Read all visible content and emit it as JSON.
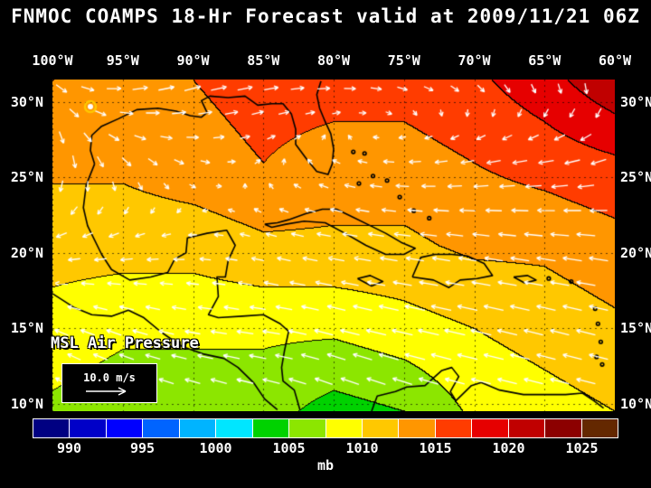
{
  "title": "FNMOC COAMPS 18-Hr Forecast valid at 2009/11/21 06Z",
  "map": {
    "lon_labels": [
      "100°W",
      "95°W",
      "90°W",
      "85°W",
      "80°W",
      "75°W",
      "70°W",
      "65°W",
      "60°W"
    ],
    "lat_labels": [
      "30°N",
      "25°N",
      "20°N",
      "15°N",
      "10°N"
    ],
    "lon_values": [
      100,
      95,
      90,
      85,
      80,
      75,
      70,
      65,
      60
    ],
    "lat_values": [
      30,
      25,
      20,
      15,
      10
    ],
    "extent": {
      "west": 100,
      "east": 60,
      "north": 31.5,
      "south": 9.5
    },
    "annotation": "MSL Air Pressure",
    "wind_legend": {
      "label": "10.0 m/s"
    }
  },
  "colorbar": {
    "unit": "mb",
    "tick_labels": [
      "990",
      "995",
      "1000",
      "1005",
      "1010",
      "1015",
      "1020",
      "1025"
    ],
    "min": 987.5,
    "step": 2.5,
    "colors": [
      "#000082",
      "#0000c8",
      "#0000ff",
      "#0064ff",
      "#00b4ff",
      "#00e6ff",
      "#00d200",
      "#8ce600",
      "#ffff00",
      "#ffc800",
      "#ff9600",
      "#ff3c00",
      "#e60000",
      "#c00000",
      "#8c0000",
      "#642800"
    ]
  },
  "chart_data": {
    "type": "heatmap",
    "field": "Mean sea level air pressure",
    "unit": "mb",
    "title": "FNMOC COAMPS 18-Hr Forecast valid at 2009/11/21 06Z",
    "lons_deg_west": [
      100,
      95,
      90,
      85,
      80,
      75,
      70,
      65,
      60
    ],
    "lats_deg_north": [
      31.5,
      26,
      20.5,
      15,
      9.5
    ],
    "pressure": [
      [
        1015,
        1013,
        1015,
        1016,
        1016,
        1016,
        1017,
        1019,
        1022
      ],
      [
        1013,
        1013,
        1014,
        1015,
        1014,
        1014,
        1015,
        1016,
        1017
      ],
      [
        1011,
        1011,
        1011,
        1012,
        1012,
        1012,
        1013,
        1013,
        1014
      ],
      [
        1009,
        1008,
        1008,
        1008,
        1008,
        1009,
        1010,
        1011,
        1012
      ],
      [
        1007,
        1006,
        1006,
        1006,
        1004,
        1005,
        1008,
        1009,
        1010
      ]
    ],
    "wind_u": [
      [
        4,
        6,
        7,
        6,
        5,
        4,
        3,
        2,
        1
      ],
      [
        0,
        3,
        3,
        1,
        -2,
        -4,
        -5,
        -6,
        -6
      ],
      [
        -4,
        -4,
        -3,
        -4,
        -6,
        -7,
        -7,
        -8,
        -8
      ],
      [
        -5,
        -6,
        -6,
        -7,
        -8,
        -9,
        -9,
        -8,
        -8
      ],
      [
        -4,
        -5,
        -6,
        -7,
        -7,
        -8,
        -8,
        -8,
        -8
      ]
    ],
    "wind_v": [
      [
        -3,
        1,
        2,
        1,
        0,
        -1,
        -2,
        -3,
        -4
      ],
      [
        -5,
        -3,
        -1,
        1,
        1,
        0,
        -1,
        -1,
        -2
      ],
      [
        -1,
        -1,
        0,
        1,
        1,
        1,
        1,
        1,
        1
      ],
      [
        2,
        2,
        1,
        1,
        2,
        2,
        2,
        2,
        2
      ],
      [
        3,
        2,
        2,
        2,
        3,
        3,
        2,
        2,
        2
      ]
    ],
    "low_marker": {
      "lon": 97.3,
      "lat": 29.7,
      "ring_color": "#ffc800"
    },
    "coastlines": [
      [
        [
          97.0,
          25.9
        ],
        [
          97.3,
          26.8
        ],
        [
          97.2,
          27.8
        ],
        [
          96.5,
          28.4
        ],
        [
          95.3,
          28.9
        ],
        [
          94.0,
          29.5
        ],
        [
          92.5,
          29.6
        ],
        [
          91.2,
          29.4
        ],
        [
          90.2,
          29.1
        ],
        [
          89.4,
          29.0
        ],
        [
          89.0,
          29.3
        ],
        [
          89.4,
          30.1
        ],
        [
          88.8,
          30.4
        ],
        [
          87.5,
          30.3
        ],
        [
          86.3,
          30.4
        ],
        [
          85.4,
          29.8
        ],
        [
          84.4,
          29.9
        ],
        [
          83.6,
          29.9
        ],
        [
          83.0,
          29.2
        ],
        [
          82.7,
          28.2
        ],
        [
          82.7,
          27.2
        ],
        [
          81.9,
          26.2
        ],
        [
          81.2,
          25.4
        ],
        [
          80.4,
          25.2
        ],
        [
          80.1,
          25.9
        ],
        [
          80.0,
          26.9
        ],
        [
          80.2,
          27.9
        ],
        [
          80.6,
          28.7
        ],
        [
          81.0,
          29.6
        ],
        [
          81.2,
          30.5
        ],
        [
          80.9,
          31.4
        ]
      ],
      [
        [
          97.0,
          25.9
        ],
        [
          97.6,
          24.5
        ],
        [
          97.8,
          23.0
        ],
        [
          97.5,
          21.8
        ],
        [
          96.5,
          19.9
        ],
        [
          95.8,
          18.9
        ],
        [
          94.5,
          18.2
        ],
        [
          93.0,
          18.4
        ],
        [
          91.8,
          18.7
        ],
        [
          91.3,
          19.6
        ],
        [
          90.5,
          20.0
        ],
        [
          90.4,
          21.0
        ],
        [
          89.0,
          21.3
        ],
        [
          87.6,
          21.5
        ],
        [
          87.0,
          20.5
        ],
        [
          87.5,
          19.5
        ],
        [
          87.7,
          18.4
        ],
        [
          88.3,
          18.4
        ],
        [
          88.2,
          17.1
        ],
        [
          88.9,
          15.9
        ],
        [
          88.2,
          15.7
        ],
        [
          86.5,
          15.8
        ],
        [
          85.0,
          15.9
        ],
        [
          83.8,
          15.3
        ],
        [
          83.2,
          14.8
        ],
        [
          83.5,
          13.5
        ],
        [
          83.7,
          12.4
        ],
        [
          83.6,
          11.5
        ],
        [
          82.8,
          10.9
        ],
        [
          82.4,
          9.6
        ]
      ],
      [
        [
          100.0,
          17.3
        ],
        [
          98.5,
          16.4
        ],
        [
          97.2,
          15.9
        ],
        [
          95.8,
          15.8
        ],
        [
          94.6,
          16.2
        ],
        [
          93.5,
          15.7
        ],
        [
          92.2,
          14.7
        ],
        [
          90.8,
          13.8
        ],
        [
          89.3,
          13.3
        ],
        [
          87.8,
          13.0
        ],
        [
          86.8,
          12.4
        ],
        [
          85.7,
          11.4
        ],
        [
          84.9,
          10.3
        ],
        [
          84.0,
          9.6
        ]
      ],
      [
        [
          77.3,
          9.5
        ],
        [
          76.9,
          10.5
        ],
        [
          75.6,
          10.8
        ],
        [
          74.8,
          11.1
        ],
        [
          73.5,
          11.2
        ],
        [
          72.3,
          12.2
        ],
        [
          71.6,
          12.4
        ],
        [
          71.1,
          11.8
        ],
        [
          71.7,
          10.8
        ],
        [
          71.3,
          10.2
        ],
        [
          70.2,
          11.2
        ],
        [
          69.5,
          11.4
        ],
        [
          68.2,
          10.9
        ],
        [
          66.5,
          10.6
        ],
        [
          64.8,
          10.6
        ],
        [
          63.5,
          10.6
        ],
        [
          62.3,
          10.7
        ],
        [
          61.5,
          10.2
        ],
        [
          60.8,
          9.7
        ]
      ],
      [
        [
          84.9,
          21.9
        ],
        [
          84.0,
          22.0
        ],
        [
          83.2,
          22.2
        ],
        [
          82.0,
          22.6
        ],
        [
          80.8,
          22.9
        ],
        [
          79.8,
          22.9
        ],
        [
          78.7,
          22.4
        ],
        [
          77.6,
          21.9
        ],
        [
          76.3,
          21.3
        ],
        [
          75.2,
          20.7
        ],
        [
          74.2,
          20.3
        ],
        [
          75.0,
          19.9
        ],
        [
          76.3,
          19.9
        ],
        [
          77.7,
          20.5
        ],
        [
          79.2,
          21.3
        ],
        [
          80.6,
          22.0
        ],
        [
          82.1,
          22.1
        ],
        [
          83.4,
          21.9
        ],
        [
          84.4,
          21.7
        ],
        [
          84.9,
          21.9
        ]
      ],
      [
        [
          74.4,
          18.4
        ],
        [
          73.8,
          19.7
        ],
        [
          72.8,
          19.9
        ],
        [
          71.6,
          19.9
        ],
        [
          70.5,
          19.8
        ],
        [
          69.3,
          19.3
        ],
        [
          68.7,
          18.5
        ],
        [
          69.8,
          18.3
        ],
        [
          71.0,
          18.2
        ],
        [
          71.8,
          17.7
        ],
        [
          72.9,
          18.2
        ],
        [
          74.4,
          18.4
        ]
      ],
      [
        [
          78.3,
          18.3
        ],
        [
          77.4,
          18.5
        ],
        [
          76.5,
          18.1
        ],
        [
          77.3,
          17.8
        ],
        [
          78.3,
          18.3
        ]
      ],
      [
        [
          67.2,
          18.4
        ],
        [
          66.2,
          18.5
        ],
        [
          65.6,
          18.2
        ],
        [
          66.4,
          18.0
        ],
        [
          67.2,
          18.4
        ]
      ]
    ],
    "islets": [
      [
        78.2,
        24.6
      ],
      [
        77.2,
        25.1
      ],
      [
        76.2,
        24.8
      ],
      [
        75.3,
        23.7
      ],
      [
        74.3,
        22.8
      ],
      [
        73.2,
        22.3
      ],
      [
        77.8,
        26.6
      ],
      [
        78.6,
        26.7
      ],
      [
        61.4,
        16.3
      ],
      [
        61.2,
        15.3
      ],
      [
        61.0,
        14.1
      ],
      [
        61.3,
        13.1
      ],
      [
        60.9,
        12.6
      ],
      [
        64.7,
        18.3
      ],
      [
        63.1,
        18.1
      ]
    ]
  }
}
